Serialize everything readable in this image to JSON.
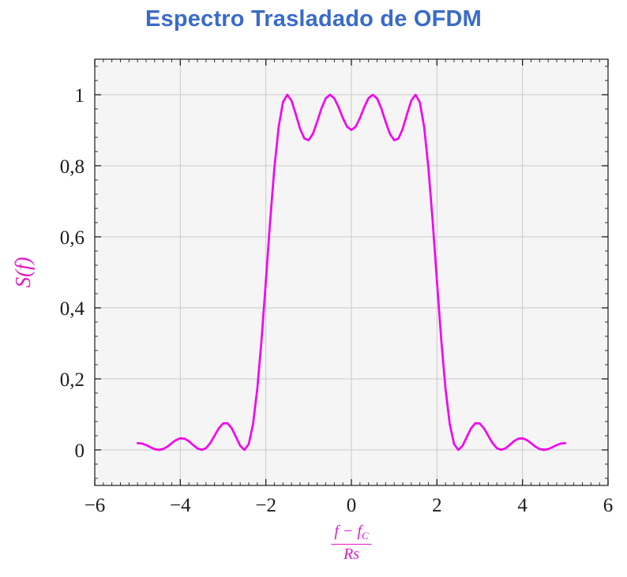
{
  "title": {
    "text": "Espectro Trasladado de OFDM",
    "color": "#3a6bc9"
  },
  "chart_data": {
    "type": "line",
    "title": "Espectro Trasladado de OFDM",
    "ylabel": "S(f)",
    "xlabel_numerator": "f − f",
    "xlabel_numerator_sub": "C",
    "xlabel_denominator": "Rs",
    "xlim": [
      -6,
      6
    ],
    "ylim": [
      -0.1,
      1.1
    ],
    "grid": true,
    "legend": "none",
    "xticks": [
      {
        "v": -6,
        "label": "−6"
      },
      {
        "v": -4,
        "label": "−4"
      },
      {
        "v": -2,
        "label": "−2"
      },
      {
        "v": 0,
        "label": "0"
      },
      {
        "v": 2,
        "label": "2"
      },
      {
        "v": 4,
        "label": "4"
      },
      {
        "v": 6,
        "label": "6"
      }
    ],
    "yticks": [
      {
        "v": 0,
        "label": "0"
      },
      {
        "v": 0.2,
        "label": "0,2"
      },
      {
        "v": 0.4,
        "label": "0,4"
      },
      {
        "v": 0.6,
        "label": "0,6"
      },
      {
        "v": 0.8,
        "label": "0,8"
      },
      {
        "v": 1,
        "label": "1"
      }
    ],
    "x_minor_step": 0.2,
    "y_minor_step": 0.04,
    "line_color": "#f400f4",
    "label_color": "#e018c8",
    "axis_color": "#1c1c1c",
    "grid_color": "#c9c9c9",
    "plot_bg": "#f5f5f5",
    "series": [
      {
        "name": "S(f)",
        "x_start": -5,
        "x_step": 0.1,
        "values": [
          0.019,
          0.018,
          0.0137,
          0.0076,
          0.0022,
          0.0,
          0.0025,
          0.0094,
          0.019,
          0.0279,
          0.0328,
          0.0317,
          0.0246,
          0.0139,
          0.0041,
          0.0,
          0.0049,
          0.0192,
          0.0399,
          0.0608,
          0.0745,
          0.0753,
          0.0615,
          0.0369,
          0.0118,
          0.0,
          0.0164,
          0.0724,
          0.1722,
          0.311,
          0.4748,
          0.6434,
          0.7947,
          0.9101,
          0.9787,
          1.0,
          0.9833,
          0.9451,
          0.9042,
          0.8767,
          0.8718,
          0.8901,
          0.9239,
          0.9614,
          0.9896,
          1.0,
          0.9901,
          0.965,
          0.9344,
          0.9099,
          0.9006,
          0.9099,
          0.9344,
          0.965,
          0.9901,
          1.0,
          0.9896,
          0.9614,
          0.9239,
          0.8901,
          0.8718,
          0.8767,
          0.9042,
          0.9451,
          0.9833,
          1.0,
          0.9787,
          0.9101,
          0.7947,
          0.6434,
          0.4748,
          0.311,
          0.1722,
          0.0724,
          0.0164,
          0.0,
          0.0118,
          0.0369,
          0.0615,
          0.0753,
          0.0745,
          0.0608,
          0.0399,
          0.0192,
          0.0049,
          0.0,
          0.0041,
          0.0139,
          0.0246,
          0.0317,
          0.0328,
          0.0279,
          0.019,
          0.0094,
          0.0025,
          0.0,
          0.0022,
          0.0076,
          0.0137,
          0.018,
          0.019
        ]
      }
    ]
  }
}
